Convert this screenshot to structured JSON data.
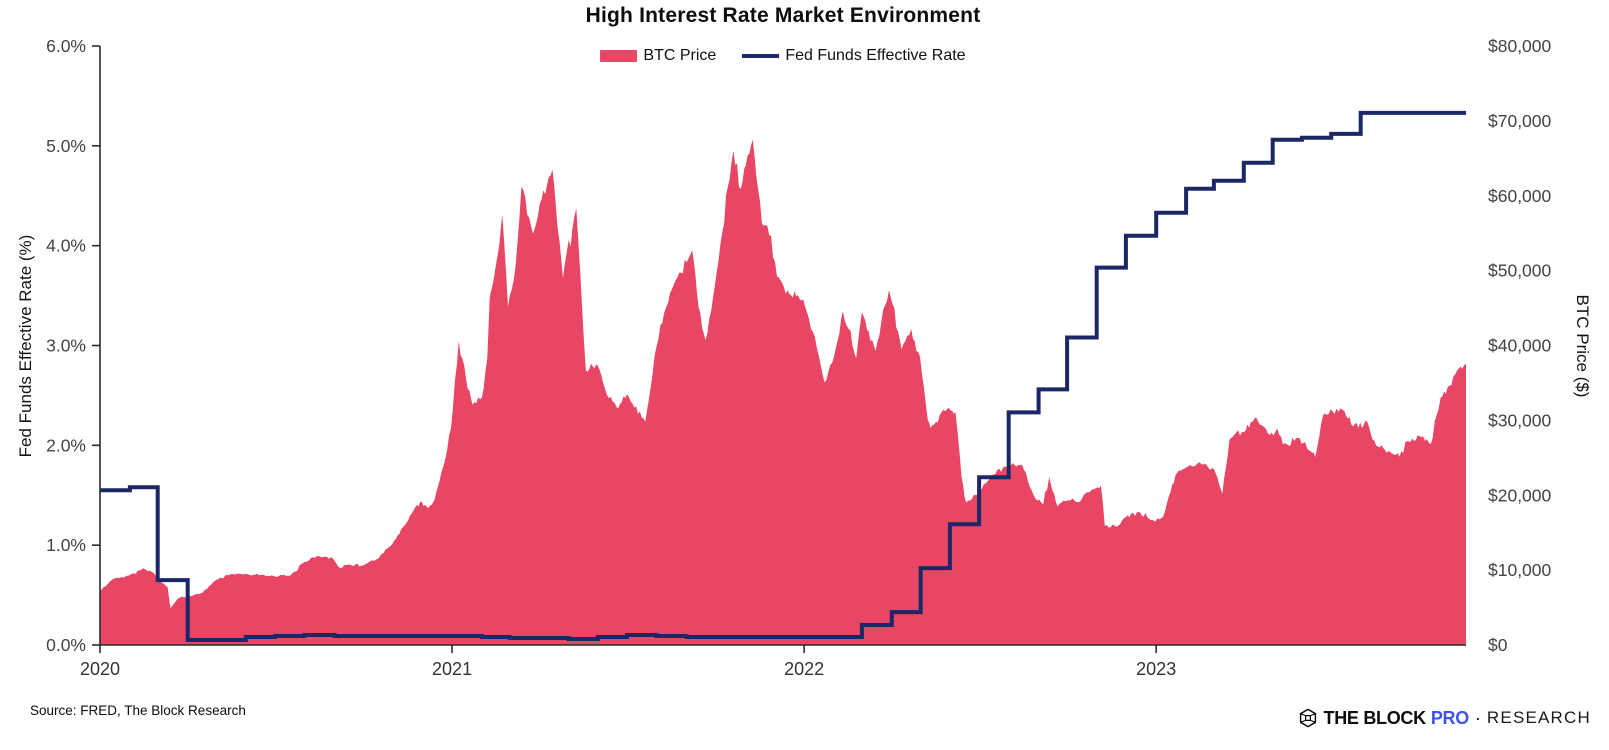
{
  "header": {
    "title": "High Interest Rate Market Environment"
  },
  "footer": {
    "source": "Source: FRED, The Block Research",
    "logo": {
      "the_block": "THE BLOCK",
      "pro": "PRO",
      "separator": "·",
      "research": "RESEARCH",
      "pro_color": "#3D53F1",
      "icon": "block-cube-icon"
    }
  },
  "colors": {
    "btc_area": "#E94565",
    "fed_line": "#1B2766",
    "axis": "#2b2b2b",
    "tick_text": "#434343"
  },
  "chart_data": {
    "type": "combo",
    "title": "High Interest Rate Market Environment",
    "legend": [
      {
        "label": "BTC Price",
        "marker": "swatch",
        "color": "#E94565"
      },
      {
        "label": "Fed Funds Effective Rate",
        "marker": "line",
        "color": "#1B2766"
      }
    ],
    "x_axis": {
      "range": [
        2020.0,
        2023.88
      ],
      "ticks": [
        2020,
        2021,
        2022,
        2023
      ],
      "tick_labels": [
        "2020",
        "2021",
        "2022",
        "2023"
      ]
    },
    "y_left": {
      "label": "Fed Funds Effective Rate (%)",
      "range": [
        0,
        6
      ],
      "tick_values": [
        0,
        1,
        2,
        3,
        4,
        5,
        6
      ],
      "tick_labels": [
        "0.0%",
        "1.0%",
        "2.0%",
        "3.0%",
        "4.0%",
        "5.0%",
        "6.0%"
      ]
    },
    "y_right": {
      "label": "BTC Price ($)",
      "range": [
        0,
        80000
      ],
      "tick_values": [
        0,
        10000,
        20000,
        30000,
        40000,
        50000,
        60000,
        70000,
        80000
      ],
      "tick_labels": [
        "$0",
        "$10,000",
        "$20,000",
        "$30,000",
        "$40,000",
        "$50,000",
        "$60,000",
        "$70,000",
        "$80,000"
      ]
    },
    "series": [
      {
        "name": "BTC Price",
        "type": "area",
        "axis": "right",
        "color": "#E94565",
        "points": [
          [
            2020.0,
            7200
          ],
          [
            2020.038,
            8850
          ],
          [
            2020.085,
            9350
          ],
          [
            2020.123,
            10250
          ],
          [
            2020.152,
            9650
          ],
          [
            2020.17,
            8550
          ],
          [
            2020.192,
            7750
          ],
          [
            2020.2,
            4900
          ],
          [
            2020.222,
            6250
          ],
          [
            2020.249,
            6450
          ],
          [
            2020.29,
            6950
          ],
          [
            2020.331,
            8750
          ],
          [
            2020.37,
            9450
          ],
          [
            2020.414,
            9500
          ],
          [
            2020.455,
            9350
          ],
          [
            2020.497,
            9150
          ],
          [
            2020.54,
            9250
          ],
          [
            2020.581,
            11100
          ],
          [
            2020.619,
            11900
          ],
          [
            2020.66,
            11650
          ],
          [
            2020.682,
            10250
          ],
          [
            2020.71,
            10750
          ],
          [
            2020.747,
            10620
          ],
          [
            2020.79,
            11500
          ],
          [
            2020.831,
            13550
          ],
          [
            2020.87,
            16300
          ],
          [
            2020.9,
            18700
          ],
          [
            2020.914,
            19150
          ],
          [
            2020.932,
            18250
          ],
          [
            2020.95,
            19400
          ],
          [
            2020.975,
            23800
          ],
          [
            2020.997,
            28950
          ],
          [
            2021.019,
            40600
          ],
          [
            2021.04,
            35500
          ],
          [
            2021.058,
            32100
          ],
          [
            2021.085,
            33100
          ],
          [
            2021.1,
            38300
          ],
          [
            2021.107,
            46400
          ],
          [
            2021.13,
            52200
          ],
          [
            2021.143,
            57400
          ],
          [
            2021.159,
            45200
          ],
          [
            2021.18,
            50400
          ],
          [
            2021.197,
            61200
          ],
          [
            2021.23,
            54900
          ],
          [
            2021.249,
            58900
          ],
          [
            2021.285,
            63500
          ],
          [
            2021.315,
            49000
          ],
          [
            2021.353,
            58300
          ],
          [
            2021.38,
            36700
          ],
          [
            2021.414,
            37300
          ],
          [
            2021.44,
            33400
          ],
          [
            2021.472,
            31600
          ],
          [
            2021.497,
            33500
          ],
          [
            2021.549,
            29800
          ],
          [
            2021.581,
            39900
          ],
          [
            2021.619,
            47000
          ],
          [
            2021.682,
            52700
          ],
          [
            2021.7,
            45200
          ],
          [
            2021.72,
            40700
          ],
          [
            2021.747,
            48200
          ],
          [
            2021.799,
            66000
          ],
          [
            2021.82,
            60900
          ],
          [
            2021.854,
            67500
          ],
          [
            2021.88,
            56300
          ],
          [
            2021.906,
            54700
          ],
          [
            2021.923,
            49200
          ],
          [
            2021.958,
            46900
          ],
          [
            2021.997,
            46200
          ],
          [
            2022.025,
            41800
          ],
          [
            2022.058,
            35100
          ],
          [
            2022.085,
            38500
          ],
          [
            2022.11,
            44600
          ],
          [
            2022.148,
            38300
          ],
          [
            2022.164,
            44400
          ],
          [
            2022.203,
            39300
          ],
          [
            2022.241,
            47400
          ],
          [
            2022.277,
            39500
          ],
          [
            2022.304,
            42200
          ],
          [
            2022.329,
            38500
          ],
          [
            2022.351,
            30100
          ],
          [
            2022.359,
            29000
          ],
          [
            2022.411,
            31700
          ],
          [
            2022.43,
            31100
          ],
          [
            2022.447,
            22500
          ],
          [
            2022.46,
            19000
          ],
          [
            2022.493,
            20100
          ],
          [
            2022.516,
            21600
          ],
          [
            2022.549,
            23400
          ],
          [
            2022.576,
            23800
          ],
          [
            2022.619,
            24100
          ],
          [
            2022.652,
            20000
          ],
          [
            2022.679,
            18800
          ],
          [
            2022.696,
            22400
          ],
          [
            2022.72,
            18500
          ],
          [
            2022.747,
            19300
          ],
          [
            2022.783,
            19100
          ],
          [
            2022.816,
            20700
          ],
          [
            2022.843,
            21300
          ],
          [
            2022.854,
            15900
          ],
          [
            2022.887,
            15800
          ],
          [
            2022.914,
            17100
          ],
          [
            2022.95,
            17800
          ],
          [
            2022.994,
            16550
          ],
          [
            2023.019,
            17100
          ],
          [
            2023.036,
            19900
          ],
          [
            2023.055,
            22700
          ],
          [
            2023.085,
            23750
          ],
          [
            2023.123,
            24400
          ],
          [
            2023.164,
            23500
          ],
          [
            2023.188,
            20200
          ],
          [
            2023.208,
            27400
          ],
          [
            2023.222,
            28100
          ],
          [
            2023.249,
            28450
          ],
          [
            2023.284,
            30400
          ],
          [
            2023.317,
            28300
          ],
          [
            2023.344,
            28900
          ],
          [
            2023.36,
            26800
          ],
          [
            2023.403,
            27700
          ],
          [
            2023.438,
            25900
          ],
          [
            2023.452,
            25100
          ],
          [
            2023.474,
            30700
          ],
          [
            2023.501,
            31200
          ],
          [
            2023.529,
            31400
          ],
          [
            2023.559,
            29200
          ],
          [
            2023.6,
            29750
          ],
          [
            2023.625,
            26600
          ],
          [
            2023.664,
            25800
          ],
          [
            2023.691,
            25150
          ],
          [
            2023.713,
            27200
          ],
          [
            2023.747,
            27970
          ],
          [
            2023.78,
            26850
          ],
          [
            2023.808,
            33100
          ],
          [
            2023.833,
            34650
          ],
          [
            2023.855,
            36700
          ],
          [
            2023.88,
            37500
          ]
        ]
      },
      {
        "name": "Fed Funds Effective Rate",
        "type": "step-line",
        "axis": "left",
        "color": "#1B2766",
        "points": [
          [
            2020.0,
            1.55
          ],
          [
            2020.085,
            1.58
          ],
          [
            2020.164,
            0.65
          ],
          [
            2020.249,
            0.05
          ],
          [
            2020.331,
            0.05
          ],
          [
            2020.414,
            0.08
          ],
          [
            2020.497,
            0.09
          ],
          [
            2020.581,
            0.1
          ],
          [
            2020.666,
            0.09
          ],
          [
            2020.747,
            0.09
          ],
          [
            2020.831,
            0.09
          ],
          [
            2020.914,
            0.09
          ],
          [
            2021.0,
            0.09
          ],
          [
            2021.085,
            0.08
          ],
          [
            2021.164,
            0.07
          ],
          [
            2021.249,
            0.07
          ],
          [
            2021.331,
            0.06
          ],
          [
            2021.414,
            0.08
          ],
          [
            2021.497,
            0.1
          ],
          [
            2021.581,
            0.09
          ],
          [
            2021.666,
            0.08
          ],
          [
            2021.747,
            0.08
          ],
          [
            2021.831,
            0.08
          ],
          [
            2021.914,
            0.08
          ],
          [
            2022.0,
            0.08
          ],
          [
            2022.085,
            0.08
          ],
          [
            2022.164,
            0.2
          ],
          [
            2022.249,
            0.33
          ],
          [
            2022.331,
            0.77
          ],
          [
            2022.414,
            1.21
          ],
          [
            2022.497,
            1.68
          ],
          [
            2022.581,
            2.33
          ],
          [
            2022.666,
            2.56
          ],
          [
            2022.747,
            3.08
          ],
          [
            2022.831,
            3.78
          ],
          [
            2022.914,
            4.1
          ],
          [
            2023.0,
            4.33
          ],
          [
            2023.085,
            4.57
          ],
          [
            2023.164,
            4.65
          ],
          [
            2023.249,
            4.83
          ],
          [
            2023.331,
            5.06
          ],
          [
            2023.414,
            5.08
          ],
          [
            2023.497,
            5.12
          ],
          [
            2023.581,
            5.33
          ],
          [
            2023.666,
            5.33
          ],
          [
            2023.747,
            5.33
          ],
          [
            2023.831,
            5.33
          ],
          [
            2023.88,
            5.33
          ]
        ]
      }
    ]
  }
}
